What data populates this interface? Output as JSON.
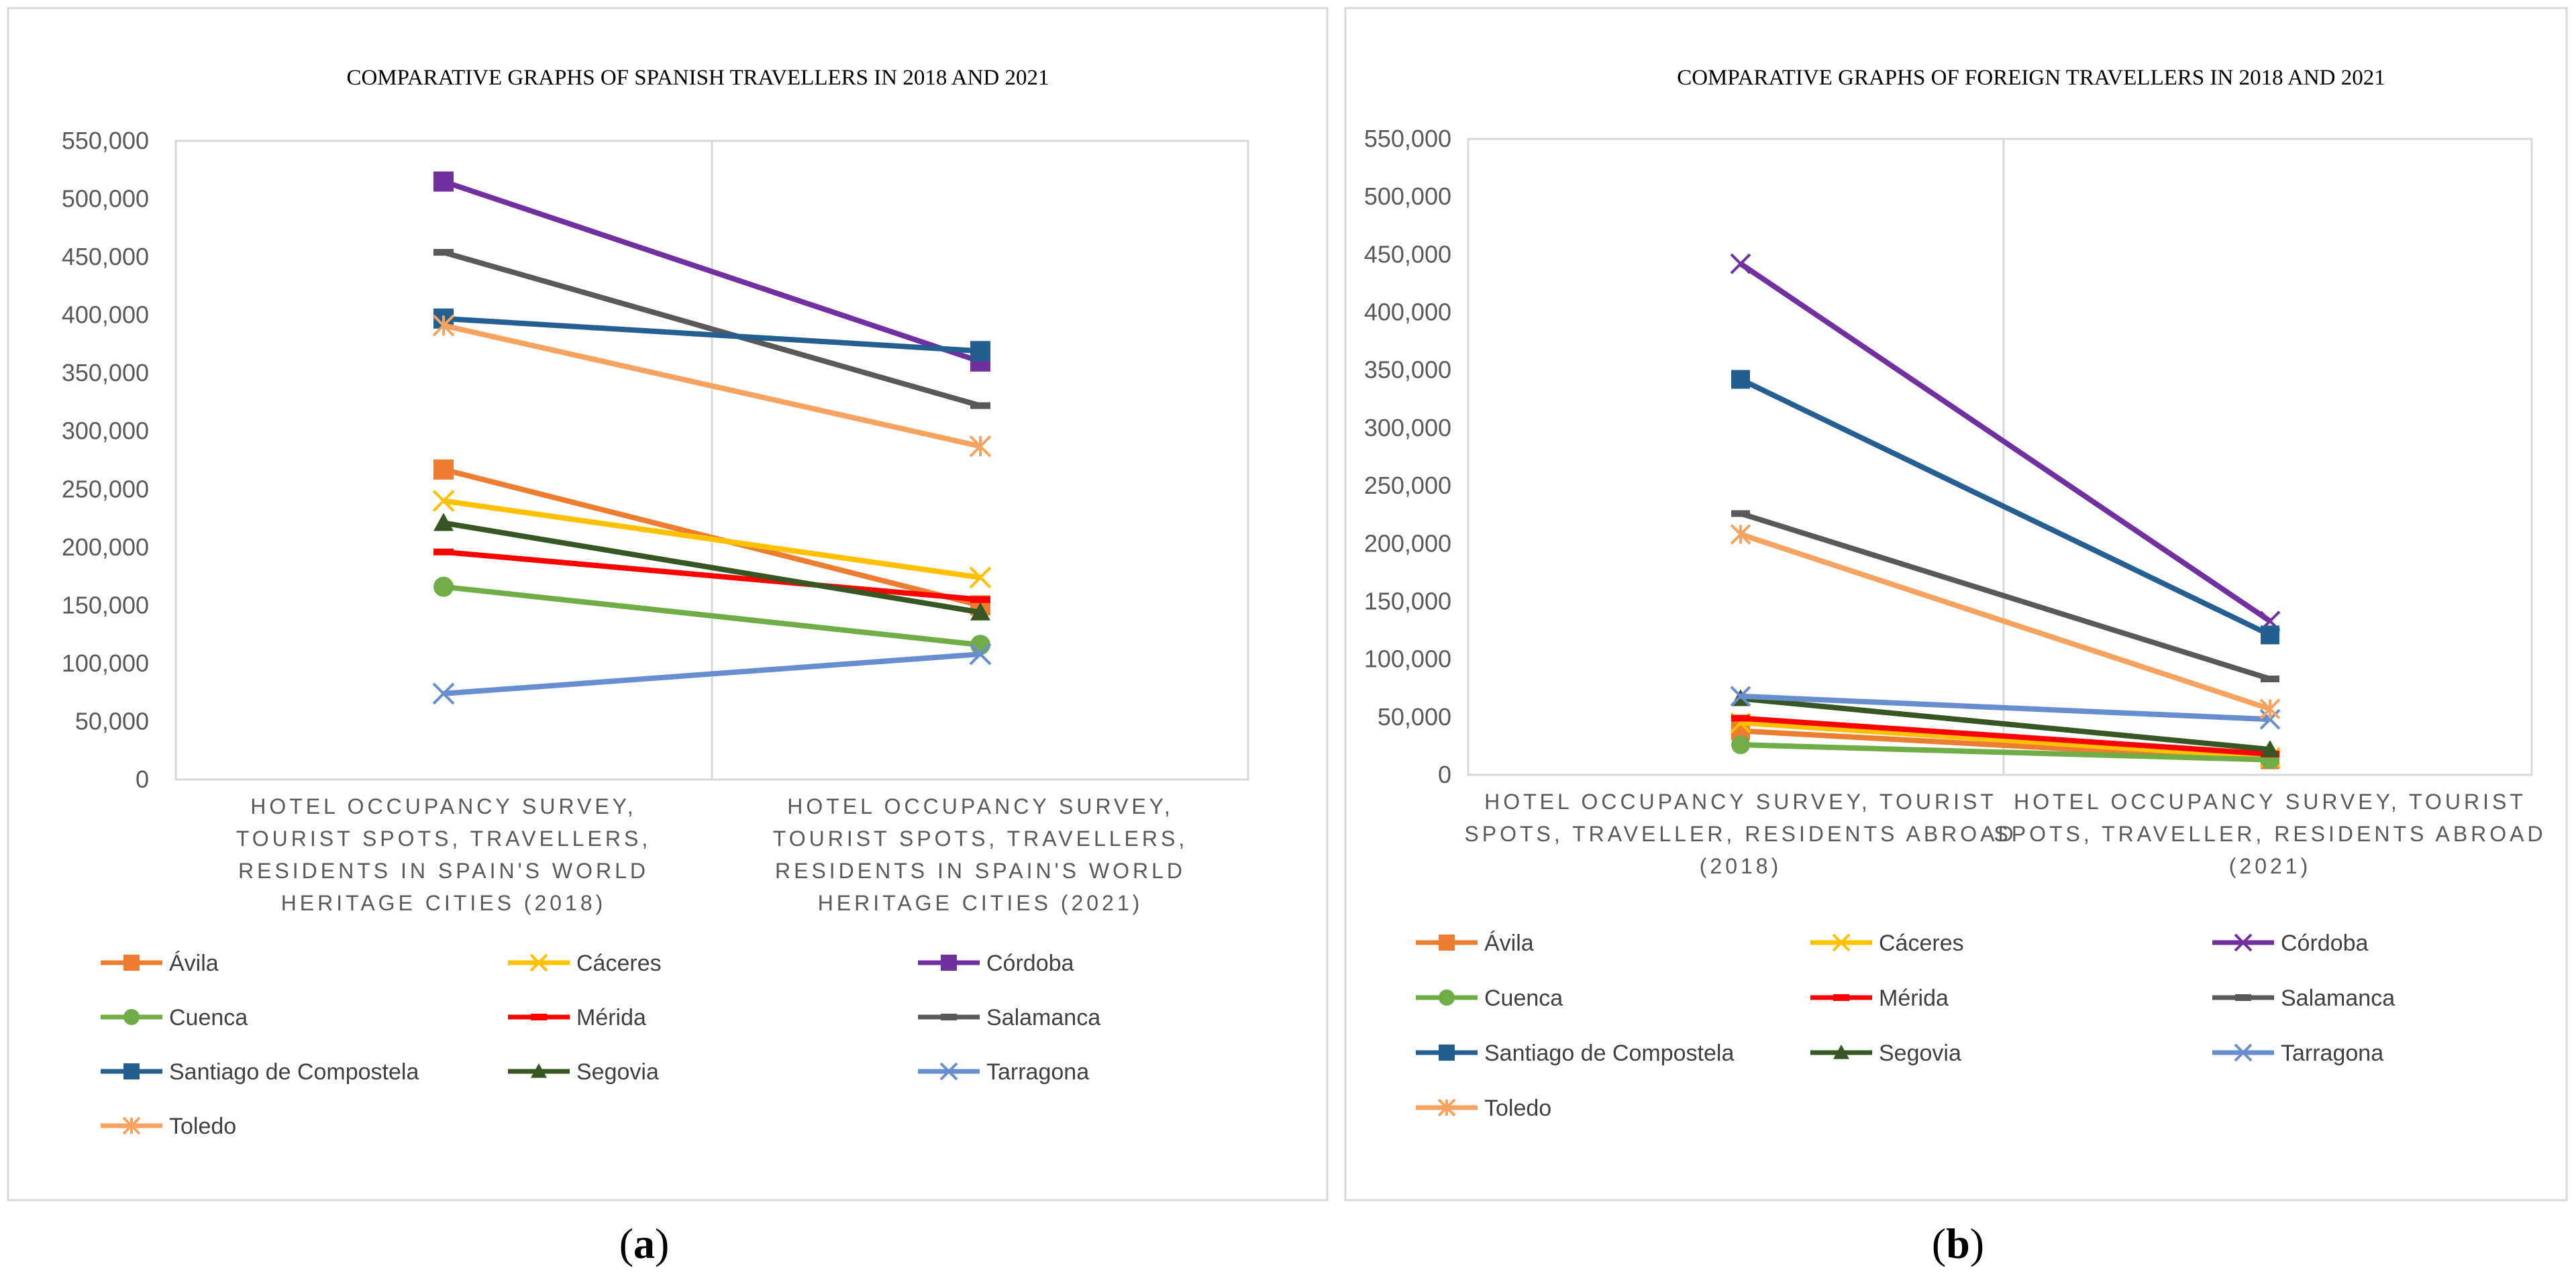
{
  "panel_labels": [
    {
      "open": "(",
      "letter": "a",
      "close": ")"
    },
    {
      "open": "(",
      "letter": "b",
      "close": ")"
    }
  ],
  "chart_data": [
    {
      "type": "line",
      "title": "COMPARATIVE GRAPHS OF SPANISH TRAVELLERS IN 2018 AND 2021",
      "ylim": [
        0,
        550000
      ],
      "yticks": [
        "0",
        "50,000",
        "100,000",
        "150,000",
        "200,000",
        "250,000",
        "300,000",
        "350,000",
        "400,000",
        "450,000",
        "500,000",
        "550,000"
      ],
      "categories": [
        [
          "HOTEL OCCUPANCY SURVEY,",
          "TOURIST SPOTS, TRAVELLERS,",
          "RESIDENTS IN SPAIN'S WORLD",
          "HERITAGE CITIES (2018)"
        ],
        [
          "HOTEL OCCUPANCY SURVEY,",
          "TOURIST SPOTS, TRAVELLERS,",
          "RESIDENTS IN SPAIN'S WORLD",
          "HERITAGE CITIES (2021)"
        ]
      ],
      "grid": true,
      "legend_position": "bottom",
      "series": [
        {
          "name": "Ávila",
          "values": [
            267000,
            150000
          ],
          "color": "#ED7D31",
          "marker": "square"
        },
        {
          "name": "Cáceres",
          "values": [
            240000,
            174000
          ],
          "color": "#FFC000",
          "marker": "x"
        },
        {
          "name": "Córdoba",
          "values": [
            515000,
            360000
          ],
          "color": "#7030A0",
          "marker": "square"
        },
        {
          "name": "Cuenca",
          "values": [
            166000,
            116000
          ],
          "color": "#70AD47",
          "marker": "circle"
        },
        {
          "name": "Mérida",
          "values": [
            196000,
            155000
          ],
          "color": "#FF0000",
          "marker": "dash"
        },
        {
          "name": "Salamanca",
          "values": [
            454000,
            322000
          ],
          "color": "#595959",
          "marker": "dash"
        },
        {
          "name": "Santiago de Compostela",
          "values": [
            397000,
            369000
          ],
          "color": "#255E91",
          "marker": "square"
        },
        {
          "name": "Segovia",
          "values": [
            221000,
            144000
          ],
          "color": "#375623",
          "marker": "triangle"
        },
        {
          "name": "Tarragona",
          "values": [
            74000,
            108000
          ],
          "color": "#698ED0",
          "marker": "x"
        },
        {
          "name": "Toledo",
          "values": [
            391000,
            287000
          ],
          "color": "#F4A460",
          "marker": "star"
        }
      ]
    },
    {
      "type": "line",
      "title": "COMPARATIVE GRAPHS OF FOREIGN TRAVELLERS IN 2018 AND 2021",
      "ylim": [
        0,
        550000
      ],
      "yticks": [
        "0",
        "50,000",
        "100,000",
        "150,000",
        "200,000",
        "250,000",
        "300,000",
        "350,000",
        "400,000",
        "450,000",
        "500,000",
        "550,000"
      ],
      "categories": [
        [
          "HOTEL OCCUPANCY SURVEY, TOURIST",
          "SPOTS, TRAVELLER, RESIDENTS ABROAD",
          "(2018)"
        ],
        [
          "HOTEL OCCUPANCY SURVEY, TOURIST",
          "SPOTS, TRAVELLER, RESIDENTS ABROAD",
          "(2021)"
        ]
      ],
      "grid": true,
      "legend_position": "bottom",
      "series": [
        {
          "name": "Ávila",
          "values": [
            38000,
            13000
          ],
          "color": "#ED7D31",
          "marker": "square"
        },
        {
          "name": "Cáceres",
          "values": [
            45000,
            15000
          ],
          "color": "#FFC000",
          "marker": "x"
        },
        {
          "name": "Córdoba",
          "values": [
            442000,
            133000
          ],
          "color": "#7030A0",
          "marker": "x"
        },
        {
          "name": "Cuenca",
          "values": [
            26000,
            13000
          ],
          "color": "#70AD47",
          "marker": "circle"
        },
        {
          "name": "Mérida",
          "values": [
            49000,
            18000
          ],
          "color": "#FF0000",
          "marker": "dash"
        },
        {
          "name": "Salamanca",
          "values": [
            226000,
            83000
          ],
          "color": "#595959",
          "marker": "dash"
        },
        {
          "name": "Santiago de Compostela",
          "values": [
            342000,
            121000
          ],
          "color": "#255E91",
          "marker": "square"
        },
        {
          "name": "Segovia",
          "values": [
            66000,
            22000
          ],
          "color": "#375623",
          "marker": "triangle"
        },
        {
          "name": "Tarragona",
          "values": [
            68000,
            48000
          ],
          "color": "#698ED0",
          "marker": "x"
        },
        {
          "name": "Toledo",
          "values": [
            208000,
            57000
          ],
          "color": "#F4A460",
          "marker": "star"
        }
      ]
    }
  ]
}
